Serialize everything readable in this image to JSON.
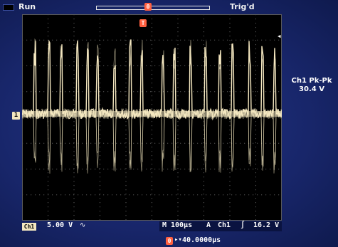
{
  "status": {
    "run_label": "Run",
    "trigger_state": "Trig'd"
  },
  "markers": {
    "record_marker": "0",
    "trigger_position": "T",
    "channel_ground": "1",
    "trigger_level_icon": "arrow-left-icon"
  },
  "measurement": {
    "label": "Ch1 Pk-Pk",
    "value": "30.4 V"
  },
  "channel": {
    "badge": "Ch1",
    "volts_per_div": "5.00 V",
    "coupling_symbol": "∿"
  },
  "horizontal": {
    "mode": "M",
    "time_per_div": "100µs",
    "trigger_label": "A",
    "trigger_source": "Ch1",
    "slope_symbol": "∫",
    "trigger_level": "16.2 V"
  },
  "delay": {
    "marker": "0",
    "arrow": "▸▾",
    "value": "40.0000µs"
  },
  "colors": {
    "trace": "#f4e7c0",
    "bezel": "#1b2b73",
    "grid": "#5a5a5a",
    "marker": "#ff6040"
  }
}
